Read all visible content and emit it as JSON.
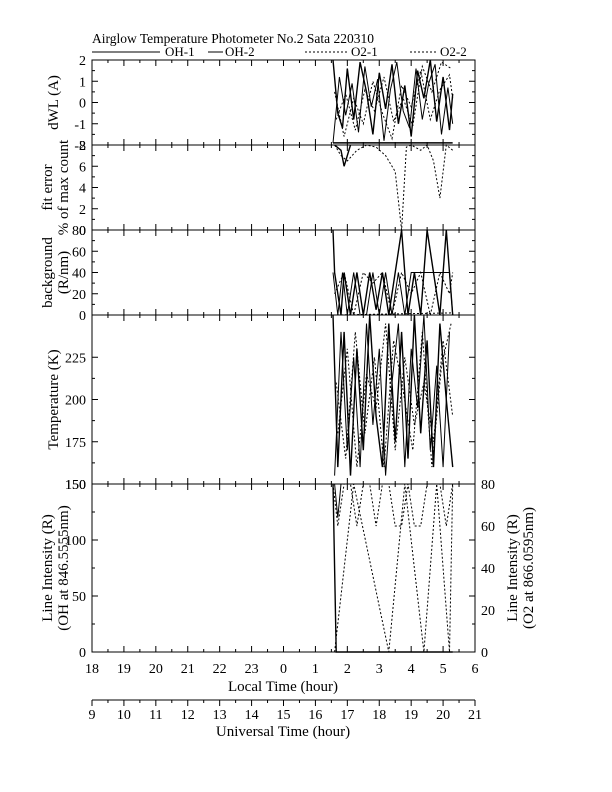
{
  "title": "Airglow Temperature Photometer No.2   Sata    220310",
  "legend": [
    {
      "label": "OH-1",
      "style": "solid"
    },
    {
      "label": "OH-2",
      "style": "solid"
    },
    {
      "label": "O2-1",
      "style": "dotted"
    },
    {
      "label": "O2-2",
      "style": "dotted"
    }
  ],
  "x_local": {
    "title": "Local Time (hour)",
    "ticks": [
      "18",
      "19",
      "20",
      "21",
      "22",
      "23",
      "0",
      "1",
      "2",
      "3",
      "4",
      "5",
      "6"
    ]
  },
  "x_universal": {
    "title": "Universal Time (hour)",
    "ticks": [
      "9",
      "10",
      "11",
      "12",
      "13",
      "14",
      "15",
      "16",
      "17",
      "18",
      "19",
      "20",
      "21"
    ]
  },
  "chart_data": [
    {
      "type": "line",
      "panel": "dwl",
      "ylabel": "dWL (A)",
      "ylim": [
        -2,
        2
      ],
      "yticks": [
        "-2",
        "-1",
        "0",
        "1",
        "2"
      ],
      "series": [
        {
          "name": "OH-1",
          "x": [
            1.55,
            1.7,
            1.85,
            2.0,
            2.2,
            2.4,
            2.6,
            2.8,
            3.0,
            3.2,
            3.4,
            3.6,
            3.8,
            4.0,
            4.2,
            4.4,
            4.6,
            4.8,
            5.0,
            5.2,
            5.3
          ],
          "values": [
            2,
            -0.5,
            -1.2,
            1.6,
            -0.8,
            1.9,
            0.5,
            -1.5,
            1.4,
            -0.3,
            1.8,
            -1.0,
            0.8,
            -1.6,
            1.5,
            0.2,
            2.0,
            -0.9,
            1.2,
            -1.3,
            0.4
          ]
        },
        {
          "name": "OH-2",
          "x": [
            1.55,
            1.75,
            1.95,
            2.15,
            2.35,
            2.55,
            2.75,
            2.95,
            3.15,
            3.35,
            3.55,
            3.75,
            3.95,
            4.15,
            4.35,
            4.55,
            4.75,
            4.95,
            5.15,
            5.3
          ],
          "values": [
            -1.9,
            1.2,
            -0.6,
            0.9,
            -1.4,
            1.7,
            -0.2,
            1.1,
            -1.8,
            0.6,
            1.9,
            -0.4,
            -1.2,
            1.6,
            -0.8,
            0.9,
            1.8,
            -1.5,
            0.7,
            -1.0
          ]
        },
        {
          "name": "O2-1",
          "x": [
            1.6,
            1.9,
            2.2,
            2.5,
            2.8,
            3.1,
            3.4,
            3.7,
            4.0,
            4.3,
            4.6,
            4.9,
            5.2,
            5.3
          ],
          "values": [
            0.5,
            -1.6,
            0.2,
            -1.0,
            1.0,
            -0.5,
            -1.7,
            0.8,
            -0.2,
            1.5,
            -0.8,
            0.6,
            1.3,
            0.2
          ]
        },
        {
          "name": "O2-2",
          "x": [
            1.65,
            1.95,
            2.25,
            2.55,
            2.85,
            3.15,
            3.45,
            3.75,
            4.05,
            4.35,
            4.65,
            4.95,
            5.25
          ],
          "values": [
            -0.8,
            0.4,
            -1.3,
            0.6,
            -0.4,
            1.2,
            -0.9,
            0.2,
            -1.1,
            1.7,
            0.5,
            1.9,
            1.6
          ]
        }
      ],
      "reference_line": {
        "x": [
          1.55,
          5.3
        ],
        "value": -1.9
      }
    },
    {
      "type": "line",
      "panel": "fit_error",
      "ylabel": "fit error",
      "ylabel2": "% of max count",
      "ylim": [
        0,
        8
      ],
      "yticks": [
        "0",
        "2",
        "4",
        "6",
        "8"
      ],
      "series": [
        {
          "name": "O2-1",
          "x": [
            1.6,
            1.8,
            2.0,
            2.3,
            2.6,
            2.9,
            3.2,
            3.5,
            3.7,
            3.85,
            4.0,
            4.3,
            4.5,
            4.7,
            4.9,
            5.1,
            5.3
          ],
          "values": [
            8,
            7,
            6.5,
            7.5,
            8,
            7.8,
            7.0,
            5.5,
            0,
            7.8,
            8,
            7.5,
            8,
            6.5,
            3.0,
            8,
            7.5
          ]
        },
        {
          "name": "OH-1",
          "x": [
            1.6,
            1.8,
            1.9,
            2.1
          ],
          "values": [
            8,
            7.5,
            6.0,
            8
          ]
        }
      ]
    },
    {
      "type": "line",
      "panel": "background",
      "ylabel": "background",
      "ylabel2": "(R/nm)",
      "ylim": [
        0,
        80
      ],
      "yticks": [
        "0",
        "20",
        "40",
        "60",
        "80"
      ],
      "series": [
        {
          "name": "OH-1",
          "x": [
            1.55,
            1.6,
            1.8,
            1.9,
            2.1,
            2.3,
            2.5,
            2.7,
            2.9,
            3.1,
            3.3,
            3.5,
            3.7,
            3.9,
            4.1,
            4.3,
            4.5,
            4.7,
            4.9,
            5.1,
            5.3
          ],
          "values": [
            80,
            40,
            0,
            40,
            0,
            40,
            0,
            40,
            5,
            40,
            0,
            40,
            80,
            0,
            40,
            0,
            80,
            40,
            0,
            80,
            0
          ]
        },
        {
          "name": "OH-2",
          "x": [
            1.55,
            1.7,
            1.85,
            2.0,
            2.2,
            2.4,
            2.6,
            2.8,
            3.0,
            3.2,
            3.4,
            3.6,
            3.8,
            4.0,
            4.2,
            4.4,
            4.6,
            4.8,
            5.0,
            5.2,
            5.3
          ],
          "values": [
            40,
            0,
            40,
            0,
            40,
            0,
            0,
            40,
            0,
            40,
            0,
            40,
            0,
            40,
            40,
            40,
            40,
            40,
            40,
            40,
            0
          ]
        },
        {
          "name": "O2-1",
          "x": [
            1.6,
            1.9,
            2.2,
            2.5,
            2.8,
            3.1,
            3.4,
            3.7,
            4.0,
            4.3,
            4.6,
            4.9,
            5.2,
            5.3
          ],
          "values": [
            20,
            40,
            0,
            40,
            30,
            40,
            0,
            40,
            20,
            40,
            0,
            40,
            20,
            40
          ]
        },
        {
          "name": "O2-2",
          "x": [
            1.55,
            5.3
          ],
          "values": [
            0,
            2
          ]
        }
      ]
    },
    {
      "type": "line",
      "panel": "temperature",
      "ylabel": "Temperature (K)",
      "ylim": [
        150,
        250
      ],
      "yticks": [
        "150",
        "175",
        "200",
        "225"
      ],
      "series": [
        {
          "name": "OH-1",
          "x": [
            1.55,
            1.7,
            1.9,
            2.1,
            2.3,
            2.5,
            2.7,
            2.9,
            3.1,
            3.3,
            3.5,
            3.7,
            3.9,
            4.1,
            4.3,
            4.5,
            4.7,
            4.9,
            5.1,
            5.3
          ],
          "values": [
            250,
            160,
            240,
            155,
            230,
            170,
            250,
            190,
            160,
            245,
            175,
            240,
            165,
            250,
            180,
            235,
            160,
            245,
            200,
            160
          ]
        },
        {
          "name": "OH-2",
          "x": [
            1.6,
            1.8,
            2.0,
            2.2,
            2.4,
            2.6,
            2.8,
            3.0,
            3.2,
            3.4,
            3.6,
            3.8,
            4.0,
            4.2,
            4.4,
            4.6,
            4.8,
            5.0,
            5.2
          ],
          "values": [
            155,
            240,
            170,
            225,
            160,
            245,
            185,
            230,
            155,
            210,
            245,
            160,
            230,
            195,
            250,
            170,
            220,
            160,
            240
          ]
        },
        {
          "name": "O2-1",
          "x": [
            1.65,
            1.95,
            2.25,
            2.55,
            2.85,
            3.15,
            3.45,
            3.75,
            4.05,
            4.35,
            4.65,
            4.95,
            5.25
          ],
          "values": [
            210,
            165,
            240,
            180,
            225,
            160,
            235,
            205,
            170,
            240,
            160,
            220,
            245
          ]
        },
        {
          "name": "O2-2",
          "x": [
            1.7,
            2.0,
            2.3,
            2.6,
            2.9,
            3.2,
            3.5,
            3.8,
            4.1,
            4.4,
            4.7,
            5.0,
            5.3
          ],
          "values": [
            180,
            230,
            160,
            215,
            195,
            245,
            170,
            225,
            185,
            210,
            175,
            235,
            190
          ]
        }
      ]
    },
    {
      "type": "line",
      "panel": "intensity",
      "ylabel": "Line Intensity (R)",
      "ylabel2": "(OH at 846.5555nm)",
      "ylim": [
        0,
        150
      ],
      "yticks": [
        "0",
        "50",
        "100",
        "150"
      ],
      "ylabel_right": "Line Intensity (R)",
      "ylabel_right2": "(O2 at 866.0595nm)",
      "ylim_right": [
        0,
        80
      ],
      "yticks_right": [
        "0",
        "20",
        "40",
        "60",
        "80"
      ],
      "series": [
        {
          "name": "OH-1",
          "x": [
            1.55,
            1.65,
            1.8,
            2.0,
            2.3,
            2.6,
            2.9,
            3.2,
            3.5,
            3.8,
            4.1,
            4.4,
            4.7,
            5.0,
            5.3
          ],
          "values": [
            150,
            0,
            0,
            0,
            0,
            0,
            0,
            0,
            0,
            0,
            0,
            0,
            0,
            0,
            0
          ]
        },
        {
          "name": "OH-2",
          "x": [
            1.55,
            1.6,
            1.7,
            1.8,
            2.0,
            2.3,
            2.6,
            2.9,
            3.1,
            3.3,
            3.5,
            3.7,
            3.9,
            4.1,
            4.3,
            4.5,
            4.7,
            4.9,
            5.1,
            5.3
          ],
          "values": [
            150,
            150,
            120,
            150,
            150,
            150,
            150,
            150,
            150,
            150,
            150,
            150,
            150,
            150,
            150,
            150,
            150,
            150,
            150,
            150
          ]
        },
        {
          "name": "O2-1",
          "x": [
            1.55,
            1.7,
            1.9,
            2.1,
            2.3,
            2.5,
            2.7,
            2.9,
            3.1,
            3.3,
            3.5,
            3.7,
            3.9,
            4.1,
            4.3,
            4.5,
            4.7,
            4.9,
            5.1,
            5.3
          ],
          "values": [
            80,
            60,
            80,
            80,
            60,
            80,
            80,
            60,
            80,
            80,
            60,
            60,
            80,
            60,
            60,
            80,
            80,
            80,
            60,
            80
          ]
        },
        {
          "name": "O2-2",
          "x": [
            1.6,
            2.2,
            3.3,
            3.8,
            4.4,
            4.8,
            5.2,
            5.3
          ],
          "values": [
            0,
            80,
            0,
            80,
            0,
            80,
            0,
            80
          ]
        }
      ]
    }
  ]
}
